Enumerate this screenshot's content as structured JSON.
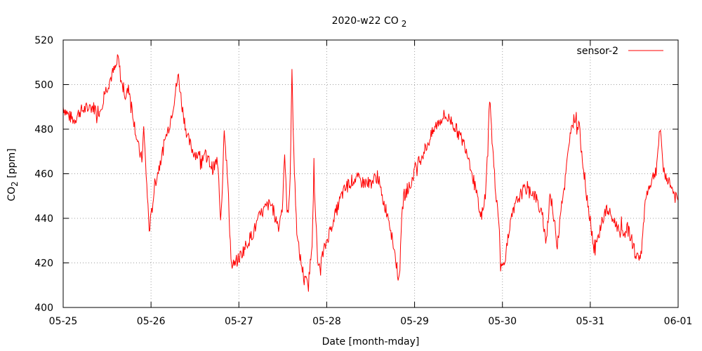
{
  "chart_data": {
    "type": "line",
    "title_main": "2020-w22 CO",
    "title_sub": "2",
    "xlabel": "Date [month-mday]",
    "ylabel_main": "CO",
    "ylabel_sub": "2",
    "ylabel_unit": " [ppm]",
    "x_range": [
      "2020-05-25",
      "2020-06-01"
    ],
    "x_tick_labels": [
      "05-25",
      "05-26",
      "05-27",
      "05-28",
      "05-29",
      "05-30",
      "05-31",
      "06-01"
    ],
    "ylim": [
      400,
      520
    ],
    "y_ticks": [
      400,
      420,
      440,
      460,
      480,
      500,
      520
    ],
    "grid": true,
    "legend_position": "top-right",
    "series": [
      {
        "name": "sensor-2",
        "color": "#ff0000",
        "points": [
          [
            "05-25 00:00",
            490
          ],
          [
            "05-25 01:30",
            486
          ],
          [
            "05-25 03:00",
            484
          ],
          [
            "05-25 04:30",
            488
          ],
          [
            "05-25 06:00",
            489
          ],
          [
            "05-25 08:00",
            490
          ],
          [
            "05-25 10:00",
            488
          ],
          [
            "05-25 11:30",
            497
          ],
          [
            "05-25 12:30",
            501
          ],
          [
            "05-25 13:30",
            505
          ],
          [
            "05-25 14:30",
            508
          ],
          [
            "05-25 15:00",
            512
          ],
          [
            "05-25 16:00",
            500
          ],
          [
            "05-25 17:00",
            495
          ],
          [
            "05-25 18:00",
            498
          ],
          [
            "05-25 19:30",
            482
          ],
          [
            "05-25 20:30",
            472
          ],
          [
            "05-25 21:30",
            466
          ],
          [
            "05-25 22:00",
            480
          ],
          [
            "05-25 23:00",
            450
          ],
          [
            "05-25 23:30",
            435
          ],
          [
            "05-26 00:00",
            440
          ],
          [
            "05-26 01:00",
            455
          ],
          [
            "05-26 02:30",
            465
          ],
          [
            "05-26 04:00",
            476
          ],
          [
            "05-26 05:00",
            482
          ],
          [
            "05-26 06:00",
            490
          ],
          [
            "05-26 07:00",
            500
          ],
          [
            "05-26 07:30",
            504
          ],
          [
            "05-26 08:30",
            490
          ],
          [
            "05-26 10:00",
            476
          ],
          [
            "05-26 11:30",
            470
          ],
          [
            "05-26 13:00",
            468
          ],
          [
            "05-26 15:00",
            468
          ],
          [
            "05-26 17:00",
            462
          ],
          [
            "05-26 18:00",
            466
          ],
          [
            "05-26 18:30",
            455
          ],
          [
            "05-26 19:00",
            440
          ],
          [
            "05-26 19:30",
            455
          ],
          [
            "05-26 20:00",
            482
          ],
          [
            "05-26 21:00",
            455
          ],
          [
            "05-26 21:30",
            435
          ],
          [
            "05-26 22:00",
            418
          ],
          [
            "05-26 23:00",
            420
          ],
          [
            "05-27 00:00",
            422
          ],
          [
            "05-27 02:00",
            428
          ],
          [
            "05-27 04:00",
            434
          ],
          [
            "05-27 06:00",
            442
          ],
          [
            "05-27 08:00",
            446
          ],
          [
            "05-27 09:00",
            446
          ],
          [
            "05-27 10:00",
            440
          ],
          [
            "05-27 11:00",
            436
          ],
          [
            "05-27 12:00",
            450
          ],
          [
            "05-27 12:30",
            470
          ],
          [
            "05-27 13:00",
            448
          ],
          [
            "05-27 13:30",
            440
          ],
          [
            "05-27 14:00",
            460
          ],
          [
            "05-27 14:30",
            505
          ],
          [
            "05-27 15:00",
            470
          ],
          [
            "05-27 15:30",
            445
          ],
          [
            "05-27 16:00",
            430
          ],
          [
            "05-27 17:00",
            420
          ],
          [
            "05-27 18:00",
            412
          ],
          [
            "05-27 19:00",
            410
          ],
          [
            "05-27 20:00",
            430
          ],
          [
            "05-27 20:30",
            462
          ],
          [
            "05-27 21:00",
            440
          ],
          [
            "05-27 21:30",
            420
          ],
          [
            "05-27 22:00",
            418
          ],
          [
            "05-27 23:00",
            424
          ],
          [
            "05-28 00:00",
            430
          ],
          [
            "05-28 02:00",
            440
          ],
          [
            "05-28 04:00",
            450
          ],
          [
            "05-28 06:00",
            456
          ],
          [
            "05-28 08:00",
            458
          ],
          [
            "05-28 10:00",
            456
          ],
          [
            "05-28 12:00",
            456
          ],
          [
            "05-28 14:00",
            459
          ],
          [
            "05-28 15:00",
            450
          ],
          [
            "05-28 16:00",
            445
          ],
          [
            "05-28 17:00",
            440
          ],
          [
            "05-28 18:00",
            430
          ],
          [
            "05-28 19:00",
            420
          ],
          [
            "05-28 19:30",
            414
          ],
          [
            "05-28 20:00",
            418
          ],
          [
            "05-28 20:30",
            440
          ],
          [
            "05-28 21:00",
            450
          ],
          [
            "05-28 23:00",
            455
          ],
          [
            "05-29 00:00",
            462
          ],
          [
            "05-29 02:00",
            468
          ],
          [
            "05-29 04:00",
            475
          ],
          [
            "05-29 06:00",
            482
          ],
          [
            "05-29 08:00",
            486
          ],
          [
            "05-29 10:00",
            484
          ],
          [
            "05-29 12:00",
            478
          ],
          [
            "05-29 14:00",
            472
          ],
          [
            "05-29 15:00",
            466
          ],
          [
            "05-29 16:00",
            458
          ],
          [
            "05-29 17:00",
            450
          ],
          [
            "05-29 18:00",
            440
          ],
          [
            "05-29 19:00",
            445
          ],
          [
            "05-29 20:00",
            470
          ],
          [
            "05-29 20:30",
            495
          ],
          [
            "05-29 21:00",
            480
          ],
          [
            "05-29 22:00",
            455
          ],
          [
            "05-29 23:00",
            440
          ],
          [
            "05-29 23:30",
            418
          ],
          [
            "05-30 00:00",
            418
          ],
          [
            "05-30 01:00",
            425
          ],
          [
            "05-30 02:30",
            440
          ],
          [
            "05-30 04:00",
            448
          ],
          [
            "05-30 05:30",
            452
          ],
          [
            "05-30 07:00",
            454
          ],
          [
            "05-30 09:00",
            450
          ],
          [
            "05-30 10:00",
            445
          ],
          [
            "05-30 11:00",
            440
          ],
          [
            "05-30 12:00",
            430
          ],
          [
            "05-30 13:00",
            452
          ],
          [
            "05-30 14:00",
            440
          ],
          [
            "05-30 15:00",
            428
          ],
          [
            "05-30 16:00",
            446
          ],
          [
            "05-30 17:00",
            455
          ],
          [
            "05-30 18:00",
            470
          ],
          [
            "05-30 19:00",
            482
          ],
          [
            "05-30 20:00",
            486
          ],
          [
            "05-30 21:00",
            480
          ],
          [
            "05-30 22:00",
            465
          ],
          [
            "05-30 23:00",
            450
          ],
          [
            "05-31 00:00",
            440
          ],
          [
            "05-31 01:00",
            425
          ],
          [
            "05-31 02:00",
            430
          ],
          [
            "05-31 03:00",
            438
          ],
          [
            "05-31 04:30",
            444
          ],
          [
            "05-31 06:00",
            440
          ],
          [
            "05-31 07:30",
            436
          ],
          [
            "05-31 09:00",
            432
          ],
          [
            "05-31 10:00",
            436
          ],
          [
            "05-31 11:00",
            432
          ],
          [
            "05-31 12:00",
            426
          ],
          [
            "05-31 13:00",
            422
          ],
          [
            "05-31 14:00",
            425
          ],
          [
            "05-31 15:00",
            448
          ],
          [
            "05-31 16:00",
            454
          ],
          [
            "05-31 17:00",
            458
          ],
          [
            "05-31 18:00",
            462
          ],
          [
            "05-31 19:00",
            480
          ],
          [
            "05-31 20:00",
            462
          ],
          [
            "05-31 21:00",
            458
          ],
          [
            "05-31 22:00",
            455
          ],
          [
            "05-31 23:00",
            450
          ],
          [
            "06-01 00:00",
            448
          ]
        ]
      }
    ]
  }
}
